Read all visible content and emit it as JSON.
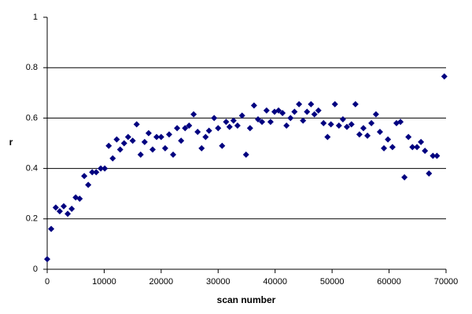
{
  "chart_data": {
    "type": "scatter",
    "x_label": "scan number",
    "y_label": "r",
    "xlim": [
      0,
      70000
    ],
    "ylim": [
      0,
      1
    ],
    "xticks": [
      0,
      10000,
      20000,
      30000,
      40000,
      50000,
      60000,
      70000
    ],
    "yticks": [
      0,
      0.2,
      0.4,
      0.6,
      0.8,
      1
    ],
    "grid": true,
    "color": "#000080",
    "x": [
      0,
      700,
      1500,
      2200,
      2900,
      3600,
      4300,
      5000,
      5700,
      6500,
      7200,
      7900,
      8600,
      9400,
      10100,
      10800,
      11500,
      12200,
      12800,
      13500,
      14200,
      15000,
      15700,
      16400,
      17100,
      17800,
      18500,
      19200,
      20000,
      20700,
      21400,
      22100,
      22800,
      23500,
      24200,
      24900,
      25700,
      26400,
      27100,
      27800,
      28400,
      29300,
      30000,
      30700,
      31400,
      32000,
      32700,
      33400,
      34200,
      34900,
      35600,
      36300,
      37000,
      37700,
      38500,
      39200,
      39900,
      40600,
      41300,
      42000,
      42700,
      43400,
      44200,
      44900,
      45600,
      46300,
      46900,
      47600,
      48500,
      49200,
      49800,
      50500,
      51200,
      51900,
      52600,
      53400,
      54100,
      54800,
      55500,
      56200,
      56900,
      57700,
      58400,
      59100,
      59800,
      60600,
      61300,
      62000,
      62700,
      63400,
      64100,
      64900,
      65600,
      66300,
      67000,
      67700,
      68400,
      69700
    ],
    "values": [
      0.04,
      0.16,
      0.245,
      0.23,
      0.25,
      0.22,
      0.24,
      0.285,
      0.28,
      0.37,
      0.335,
      0.385,
      0.385,
      0.4,
      0.4,
      0.49,
      0.44,
      0.515,
      0.475,
      0.5,
      0.525,
      0.51,
      0.575,
      0.455,
      0.505,
      0.54,
      0.475,
      0.525,
      0.525,
      0.48,
      0.535,
      0.455,
      0.56,
      0.51,
      0.56,
      0.57,
      0.615,
      0.545,
      0.48,
      0.525,
      0.55,
      0.6,
      0.56,
      0.49,
      0.585,
      0.565,
      0.59,
      0.57,
      0.61,
      0.455,
      0.56,
      0.65,
      0.595,
      0.585,
      0.63,
      0.585,
      0.625,
      0.63,
      0.62,
      0.57,
      0.6,
      0.625,
      0.655,
      0.59,
      0.625,
      0.655,
      0.615,
      0.63,
      0.58,
      0.525,
      0.575,
      0.655,
      0.57,
      0.595,
      0.565,
      0.575,
      0.655,
      0.535,
      0.56,
      0.53,
      0.58,
      0.615,
      0.545,
      0.48,
      0.515,
      0.485,
      0.58,
      0.585,
      0.365,
      0.525,
      0.485,
      0.485,
      0.505,
      0.47,
      0.38,
      0.45,
      0.45,
      0.765
    ]
  }
}
